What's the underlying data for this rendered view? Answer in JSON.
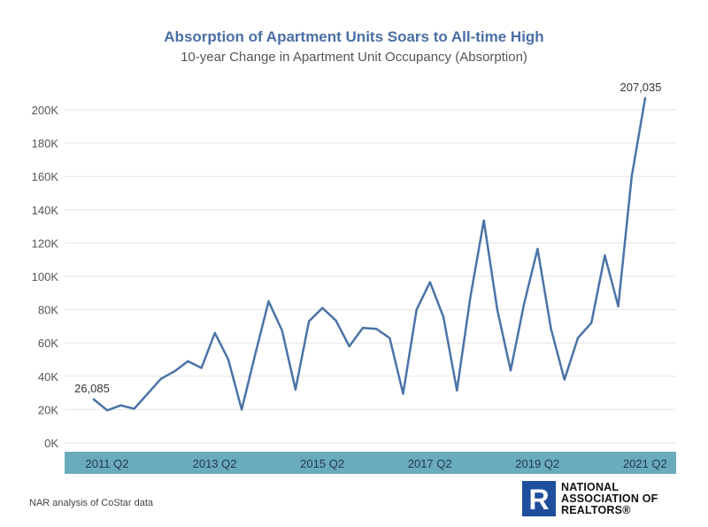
{
  "title": "Absorption of Apartment Units Soars to All-time High",
  "subtitle": "10-year Change in Apartment Unit Occupancy (Absorption)",
  "source": "NAR analysis of CoStar data",
  "logo": {
    "line1": "NATIONAL",
    "line2": "ASSOCIATION OF",
    "line3": "REALTORS®",
    "mark": "R"
  },
  "colors": {
    "line": "#4a74a6",
    "title": "#4a6fa5",
    "axis_band": "#6aabbd",
    "logo_blue": "#1f4e9c"
  },
  "chart_data": {
    "type": "line",
    "title": "Absorption of Apartment Units Soars to All-time High",
    "subtitle": "10-year Change in Apartment Unit Occupancy (Absorption)",
    "xlabel": "",
    "ylabel": "",
    "ylim": [
      0,
      210000
    ],
    "yticks": [
      0,
      20000,
      40000,
      60000,
      80000,
      100000,
      120000,
      140000,
      160000,
      180000,
      200000
    ],
    "ytick_labels": [
      "0K",
      "20K",
      "40K",
      "60K",
      "80K",
      "100K",
      "120K",
      "140K",
      "160K",
      "180K",
      "200K"
    ],
    "xtick_labels": [
      "2011 Q2",
      "2013 Q2",
      "2015 Q2",
      "2017 Q2",
      "2019 Q2",
      "2021 Q2"
    ],
    "xtick_indices": [
      0,
      8,
      16,
      24,
      32,
      40
    ],
    "grid": true,
    "series": [
      {
        "values": [
          26085,
          19500,
          22500,
          20500,
          29500,
          38500,
          43000,
          49000,
          45000,
          66000,
          50000,
          20000,
          53000,
          85000,
          67500,
          32000,
          73000,
          81000,
          73500,
          58000,
          69000,
          68500,
          63000,
          29500,
          80000,
          96500,
          75500,
          31500,
          87500,
          133500,
          80000,
          43500,
          83500,
          116500,
          68500,
          38000,
          63000,
          72000,
          112500,
          82000,
          160000,
          207035
        ]
      }
    ],
    "annotations": [
      {
        "index": 0,
        "text": "26,085"
      },
      {
        "index": 41,
        "text": "207,035"
      }
    ]
  }
}
